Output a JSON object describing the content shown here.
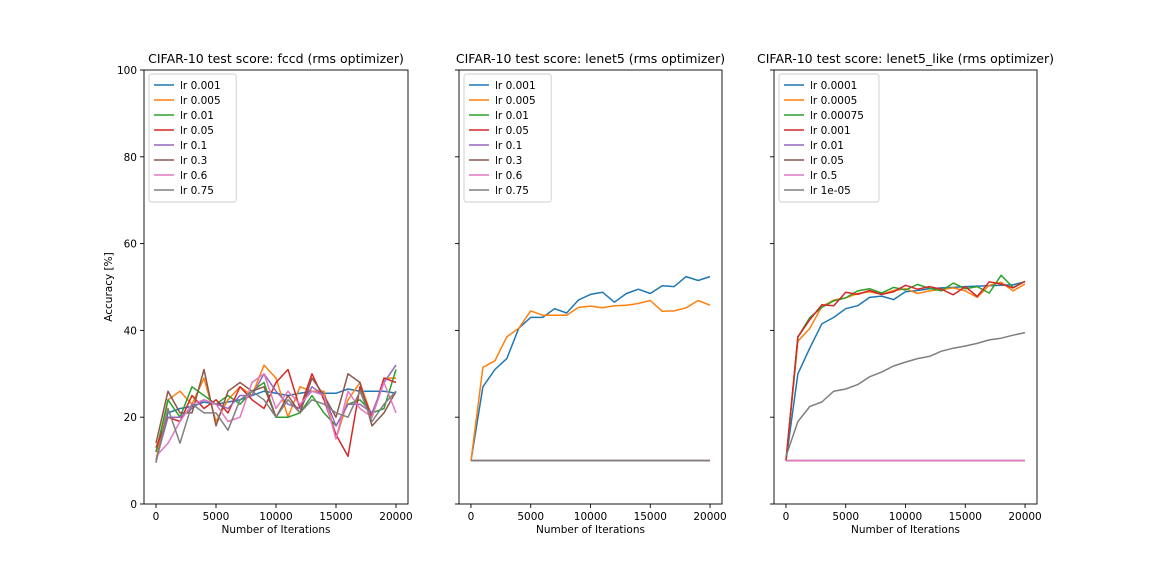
{
  "chart_data": [
    {
      "type": "line",
      "title": "CIFAR-10 test score: fccd (rms optimizer)",
      "xlabel": "Number of Iterations",
      "ylabel": "Accuracy [%]",
      "xlim": [
        -1000,
        21000
      ],
      "ylim": [
        0,
        100
      ],
      "xticks": [
        "0",
        "5000",
        "10000",
        "15000",
        "20000"
      ],
      "yticks": [
        "0",
        "20",
        "40",
        "60",
        "80",
        "100"
      ],
      "show_ytick_labels": true,
      "legend": "top-left",
      "grid": false,
      "x": [
        0,
        1000,
        2000,
        3000,
        4000,
        5000,
        6000,
        7000,
        8000,
        9000,
        10000,
        11000,
        12000,
        13000,
        14000,
        15000,
        16000,
        17000,
        18000,
        19000,
        20000
      ],
      "series": [
        {
          "name": "lr 0.001",
          "color": "#1f77b4",
          "values": [
            12,
            21,
            22,
            22.5,
            23.5,
            23,
            23.5,
            24,
            25,
            26,
            25.5,
            25,
            25.5,
            26,
            25.5,
            25.5,
            26.5,
            26,
            26,
            26,
            25.5
          ]
        },
        {
          "name": "lr 0.005",
          "color": "#ff7f0e",
          "values": [
            10,
            24,
            26,
            23,
            29,
            19,
            24,
            27,
            25,
            32,
            29,
            20,
            27,
            26,
            26,
            15,
            24,
            28,
            20,
            29,
            29
          ]
        },
        {
          "name": "lr 0.01",
          "color": "#2ca02c",
          "values": [
            12,
            24,
            20,
            27,
            25,
            23,
            25,
            23,
            26,
            28,
            20,
            20,
            21,
            25,
            21,
            18,
            23,
            24,
            21,
            22,
            31
          ]
        },
        {
          "name": "lr 0.05",
          "color": "#d62728",
          "values": [
            13,
            20,
            19,
            25,
            22,
            24,
            21,
            27,
            24,
            22,
            28,
            31,
            22,
            30,
            24,
            16,
            11,
            27,
            20,
            29,
            28
          ]
        },
        {
          "name": "lr 0.1",
          "color": "#9467bd",
          "values": [
            10,
            20,
            20,
            22,
            24,
            23,
            22,
            25,
            25,
            30,
            26,
            23,
            22,
            27,
            25,
            18,
            23,
            23,
            21,
            28,
            32
          ]
        },
        {
          "name": "lr 0.3",
          "color": "#8c564b",
          "values": [
            14,
            26,
            21,
            21,
            31,
            18,
            26,
            28,
            26,
            27,
            20,
            25,
            21,
            29,
            25,
            20,
            30,
            28,
            18,
            21,
            26
          ]
        },
        {
          "name": "lr 0.6",
          "color": "#e377c2",
          "values": [
            11,
            14,
            19,
            23,
            24,
            23,
            19,
            20,
            28,
            30,
            22,
            26,
            23,
            26,
            25,
            15,
            26,
            22,
            20,
            28,
            21
          ]
        },
        {
          "name": "lr 0.75",
          "color": "#7f7f7f",
          "values": [
            9.5,
            22,
            14,
            23,
            21,
            21,
            17,
            24,
            26,
            24,
            20,
            24,
            21,
            24,
            23,
            21,
            20,
            26,
            19,
            23,
            26
          ]
        }
      ]
    },
    {
      "type": "line",
      "title": "CIFAR-10 test score: lenet5 (rms optimizer)",
      "xlabel": "Number of Iterations",
      "ylabel": "",
      "xlim": [
        -1000,
        21000
      ],
      "ylim": [
        0,
        100
      ],
      "xticks": [
        "0",
        "5000",
        "10000",
        "15000",
        "20000"
      ],
      "yticks": [
        "0",
        "20",
        "40",
        "60",
        "80",
        "100"
      ],
      "show_ytick_labels": false,
      "legend": "top-left",
      "grid": false,
      "x": [
        0,
        1000,
        2000,
        3000,
        4000,
        5000,
        6000,
        7000,
        8000,
        9000,
        10000,
        11000,
        12000,
        13000,
        14000,
        15000,
        16000,
        17000,
        18000,
        19000,
        20000
      ],
      "series": [
        {
          "name": "lr 0.001",
          "color": "#1f77b4",
          "values": [
            10,
            27,
            31,
            33.5,
            40.5,
            43,
            43,
            45,
            44,
            47,
            48.3,
            48.8,
            46.5,
            48.5,
            49.5,
            48.5,
            50.3,
            50.1,
            52.4,
            51.5,
            52.4
          ]
        },
        {
          "name": "lr 0.005",
          "color": "#ff7f0e",
          "values": [
            10,
            31.5,
            33,
            38.5,
            40.5,
            44.5,
            43.5,
            43.5,
            43.5,
            45.3,
            45.6,
            45.2,
            45.7,
            45.8,
            46.2,
            46.9,
            44.4,
            44.5,
            45.2,
            46.9,
            45.8
          ]
        },
        {
          "name": "lr 0.01",
          "color": "#2ca02c",
          "values": [
            10,
            10,
            10,
            10,
            10,
            10,
            10,
            10,
            10,
            10,
            10,
            10,
            10,
            10,
            10,
            10,
            10,
            10,
            10,
            10,
            10
          ]
        },
        {
          "name": "lr 0.05",
          "color": "#d62728",
          "values": [
            10,
            10,
            10,
            10,
            10,
            10,
            10,
            10,
            10,
            10,
            10,
            10,
            10,
            10,
            10,
            10,
            10,
            10,
            10,
            10,
            10
          ]
        },
        {
          "name": "lr 0.1",
          "color": "#9467bd",
          "values": [
            10,
            10,
            10,
            10,
            10,
            10,
            10,
            10,
            10,
            10,
            10,
            10,
            10,
            10,
            10,
            10,
            10,
            10,
            10,
            10,
            10
          ]
        },
        {
          "name": "lr 0.3",
          "color": "#8c564b",
          "values": [
            10,
            10,
            10,
            10,
            10,
            10,
            10,
            10,
            10,
            10,
            10,
            10,
            10,
            10,
            10,
            10,
            10,
            10,
            10,
            10,
            10
          ]
        },
        {
          "name": "lr 0.6",
          "color": "#e377c2",
          "values": [
            10,
            10,
            10,
            10,
            10,
            10,
            10,
            10,
            10,
            10,
            10,
            10,
            10,
            10,
            10,
            10,
            10,
            10,
            10,
            10,
            10
          ]
        },
        {
          "name": "lr 0.75",
          "color": "#7f7f7f",
          "values": [
            10,
            10,
            10,
            10,
            10,
            10,
            10,
            10,
            10,
            10,
            10,
            10,
            10,
            10,
            10,
            10,
            10,
            10,
            10,
            10,
            10
          ]
        }
      ]
    },
    {
      "type": "line",
      "title": "CIFAR-10 test score: lenet5_like (rms optimizer)",
      "xlabel": "Number of Iterations",
      "ylabel": "",
      "xlim": [
        -1000,
        21000
      ],
      "ylim": [
        0,
        100
      ],
      "xticks": [
        "0",
        "5000",
        "10000",
        "15000",
        "20000"
      ],
      "yticks": [
        "0",
        "20",
        "40",
        "60",
        "80",
        "100"
      ],
      "show_ytick_labels": false,
      "legend": "top-left",
      "grid": false,
      "x": [
        0,
        1000,
        2000,
        3000,
        4000,
        5000,
        6000,
        7000,
        8000,
        9000,
        10000,
        11000,
        12000,
        13000,
        14000,
        15000,
        16000,
        17000,
        18000,
        19000,
        20000
      ],
      "series": [
        {
          "name": "lr 0.0001",
          "color": "#1f77b4",
          "values": [
            10,
            30,
            36,
            41.5,
            43,
            45,
            45.7,
            47.6,
            47.9,
            47.1,
            48.9,
            49.2,
            49.6,
            49.8,
            49.9,
            50.1,
            50.2,
            50.3,
            50.4,
            50.5,
            51.2
          ]
        },
        {
          "name": "lr 0.0005",
          "color": "#ff7f0e",
          "values": [
            10,
            37.5,
            40.5,
            45.5,
            47,
            47.5,
            48.5,
            48.9,
            48.3,
            49.2,
            49.6,
            48.5,
            49.1,
            49.4,
            49.8,
            49.1,
            47.6,
            50.4,
            51.1,
            49.1,
            50.7
          ]
        },
        {
          "name": "lr 0.00075",
          "color": "#2ca02c",
          "values": [
            10,
            38.5,
            43,
            45.3,
            46.8,
            47.5,
            49.1,
            49.6,
            48.6,
            49.9,
            49.3,
            50.6,
            49.7,
            49.1,
            50.9,
            49.6,
            50.1,
            48.6,
            52.7,
            49.9,
            51.3
          ]
        },
        {
          "name": "lr 0.001",
          "color": "#d62728",
          "values": [
            10,
            38.5,
            42.5,
            45.9,
            45.7,
            48.8,
            48.3,
            49.2,
            48.3,
            48.9,
            50.4,
            49.5,
            50.1,
            49.5,
            48.2,
            50.1,
            47.8,
            51.2,
            50.7,
            49.8,
            51.3
          ]
        },
        {
          "name": "lr 0.01",
          "color": "#9467bd",
          "values": [
            10,
            10,
            10,
            10,
            10,
            10,
            10,
            10,
            10,
            10,
            10,
            10,
            10,
            10,
            10,
            10,
            10,
            10,
            10,
            10,
            10
          ]
        },
        {
          "name": "lr 0.05",
          "color": "#8c564b",
          "values": [
            10,
            10,
            10,
            10,
            10,
            10,
            10,
            10,
            10,
            10,
            10,
            10,
            10,
            10,
            10,
            10,
            10,
            10,
            10,
            10,
            10
          ]
        },
        {
          "name": "lr 0.5",
          "color": "#e377c2",
          "values": [
            10,
            10,
            10,
            10,
            10,
            10,
            10,
            10,
            10,
            10,
            10,
            10,
            10,
            10,
            10,
            10,
            10,
            10,
            10,
            10,
            10
          ]
        },
        {
          "name": "lr 1e-05",
          "color": "#7f7f7f",
          "values": [
            11,
            19,
            22.5,
            23.5,
            26,
            26.5,
            27.5,
            29.3,
            30.4,
            31.8,
            32.7,
            33.5,
            34,
            35.2,
            35.9,
            36.4,
            37,
            37.8,
            38.2,
            38.9,
            39.5
          ]
        }
      ]
    }
  ]
}
